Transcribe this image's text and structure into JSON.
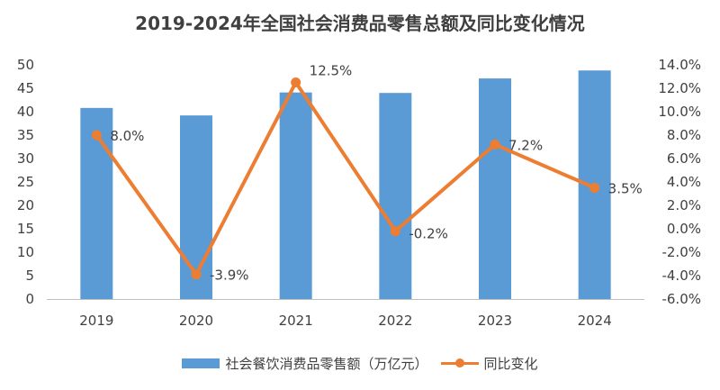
{
  "colors": {
    "bar": "#5b9bd5",
    "line": "#ed7d31",
    "axis": "#bfbfbf",
    "text": "#404040"
  },
  "chart_data": {
    "type": "bar+line",
    "title": "2019-2024年全国社会消费品零售总额及同比变化情况",
    "categories": [
      "2019",
      "2020",
      "2021",
      "2022",
      "2023",
      "2024"
    ],
    "series": [
      {
        "name": "社会餐饮消费品零售额（万亿元）",
        "type": "bar",
        "axis": "left",
        "values": [
          40.8,
          39.2,
          44.1,
          44.0,
          47.1,
          48.8
        ]
      },
      {
        "name": "同比变化",
        "type": "line",
        "axis": "right",
        "values": [
          8.0,
          -3.9,
          12.5,
          -0.2,
          7.2,
          3.5
        ],
        "labels": [
          "8.0%",
          "-3.9%",
          "12.5%",
          "-0.2%",
          "7.2%",
          "3.5%"
        ]
      }
    ],
    "left_axis": {
      "min": 0,
      "max": 50,
      "step": 5,
      "ticks": [
        "0",
        "5",
        "10",
        "15",
        "20",
        "25",
        "30",
        "35",
        "40",
        "45",
        "50"
      ]
    },
    "right_axis": {
      "min": -6,
      "max": 14,
      "step": 2,
      "ticks": [
        "-6.0%",
        "-4.0%",
        "-2.0%",
        "0.0%",
        "2.0%",
        "4.0%",
        "6.0%",
        "8.0%",
        "10.0%",
        "12.0%",
        "14.0%"
      ]
    },
    "grid": false,
    "legend": "bottom"
  }
}
